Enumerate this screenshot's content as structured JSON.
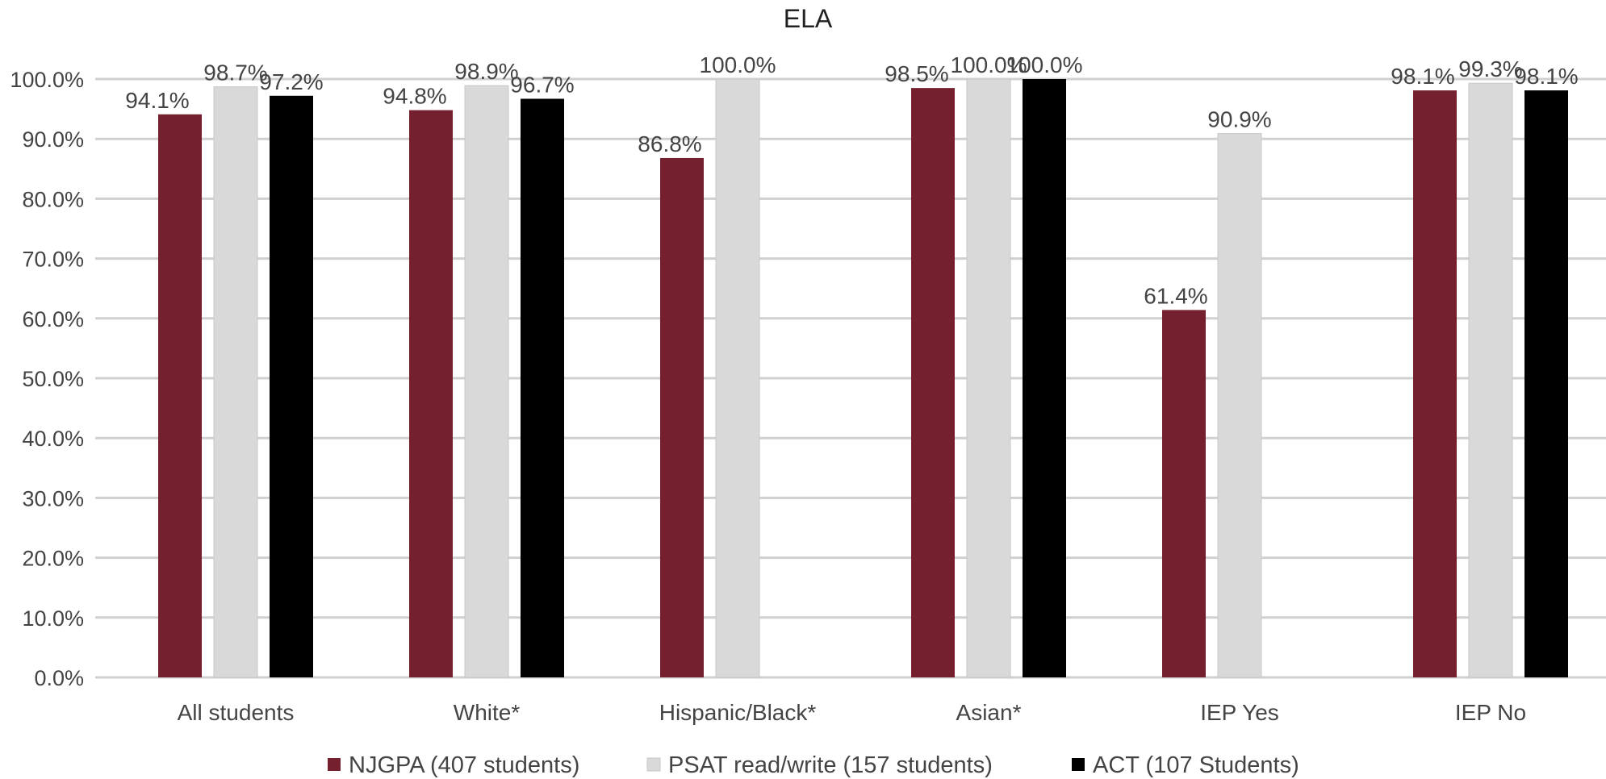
{
  "chart_data": {
    "type": "bar",
    "title": "ELA",
    "xlabel": "",
    "ylabel": "",
    "categories": [
      "All students",
      "White*",
      "Hispanic/Black*",
      "Asian*",
      "IEP Yes",
      "IEP No"
    ],
    "series": [
      {
        "name": "NJGPA (407 students)",
        "color": "#74202e",
        "values": [
          94.1,
          94.8,
          86.8,
          98.5,
          61.4,
          98.1
        ],
        "labels": [
          "94.1%",
          "94.8%",
          "86.8%",
          "98.5%",
          "61.4%",
          "98.1%"
        ]
      },
      {
        "name": "PSAT read/write (157 students)",
        "color": "#d9d9d9",
        "values": [
          98.7,
          98.9,
          100.0,
          100.0,
          90.9,
          99.3
        ],
        "labels": [
          "98.7%",
          "98.9%",
          "100.0%",
          "100.0%",
          "90.9%",
          "99.3%"
        ]
      },
      {
        "name": "ACT (107 Students)",
        "color": "#000000",
        "values": [
          97.2,
          96.7,
          null,
          100.0,
          null,
          98.1
        ],
        "labels": [
          "97.2%",
          "96.7%",
          "",
          "100.0%",
          "",
          "98.1%"
        ]
      }
    ],
    "ylim": [
      0,
      100
    ],
    "yticks": [
      "0.0%",
      "10.0%",
      "20.0%",
      "30.0%",
      "40.0%",
      "50.0%",
      "60.0%",
      "70.0%",
      "80.0%",
      "90.0%",
      "100.0%"
    ],
    "ytick_values": [
      0,
      10,
      20,
      30,
      40,
      50,
      60,
      70,
      80,
      90,
      100
    ],
    "grid": true,
    "gridline_color": "#d0d0d0",
    "legend_position": "bottom"
  }
}
